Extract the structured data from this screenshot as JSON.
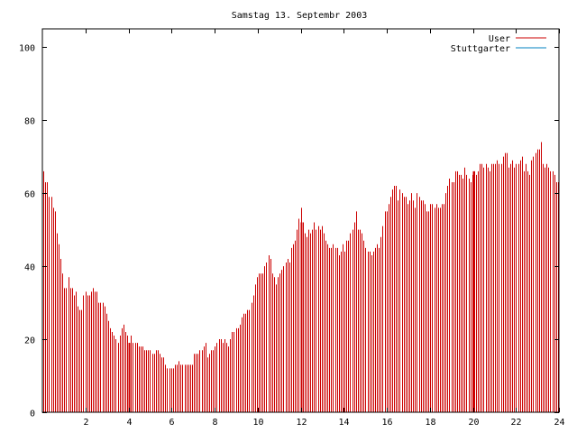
{
  "chart_data": {
    "type": "bar",
    "title": "Samstag 13. Septembr 2003",
    "xlabel": "",
    "ylabel": "",
    "xlim": [
      0,
      24
    ],
    "ylim": [
      0,
      105
    ],
    "xticks": [
      2,
      4,
      6,
      8,
      10,
      12,
      14,
      16,
      18,
      20,
      22,
      24
    ],
    "yticks": [
      0,
      20,
      40,
      60,
      80,
      100
    ],
    "grid": false,
    "legend_position": "top-right",
    "series": [
      {
        "name": "User",
        "color": "#cc0000",
        "values": [
          66,
          63,
          63,
          59,
          59,
          56,
          55,
          49,
          46,
          42,
          38,
          34,
          34,
          37,
          34,
          34,
          32,
          33,
          29,
          28,
          28,
          32,
          33,
          32,
          32,
          33,
          34,
          33,
          33,
          30,
          30,
          30,
          29,
          27,
          25,
          23,
          22,
          21,
          20,
          19,
          21,
          23,
          24,
          22,
          21,
          19,
          21,
          19,
          19,
          19,
          18,
          18,
          18,
          17,
          17,
          17,
          17,
          16,
          16,
          17,
          17,
          16,
          15,
          15,
          13,
          12,
          12,
          12,
          12,
          13,
          13,
          14,
          13,
          13,
          13,
          13,
          13,
          13,
          13,
          16,
          16,
          16,
          17,
          17,
          18,
          19,
          15,
          16,
          17,
          17,
          18,
          19,
          20,
          20,
          19,
          20,
          19,
          18,
          20,
          22,
          22,
          23,
          23,
          24,
          26,
          27,
          27,
          28,
          28,
          30,
          32,
          35,
          37,
          38,
          38,
          38,
          40,
          41,
          43,
          42,
          38,
          37,
          35,
          37,
          38,
          39,
          40,
          41,
          42,
          41,
          45,
          46,
          47,
          50,
          53,
          56,
          52,
          49,
          48,
          50,
          49,
          50,
          52,
          50,
          51,
          50,
          51,
          49,
          47,
          46,
          45,
          45,
          46,
          45,
          45,
          43,
          44,
          46,
          44,
          47,
          47,
          49,
          50,
          52,
          55,
          50,
          50,
          49,
          47,
          45,
          44,
          44,
          43,
          44,
          45,
          46,
          45,
          48,
          51,
          55,
          55,
          57,
          59,
          61,
          62,
          62,
          58,
          61,
          60,
          59,
          59,
          57,
          58,
          60,
          58,
          56,
          60,
          59,
          58,
          58,
          57,
          55,
          55,
          57,
          57,
          56,
          57,
          56,
          56,
          57,
          57,
          60,
          62,
          64,
          63,
          63,
          66,
          66,
          65,
          65,
          64,
          67,
          65,
          64,
          63,
          65,
          66,
          65,
          66,
          68,
          68,
          67,
          68,
          67,
          66,
          68,
          68,
          68,
          69,
          68,
          68,
          70,
          71,
          71,
          67,
          68,
          69,
          67,
          68,
          68,
          69,
          70,
          66,
          68,
          66,
          65,
          69,
          70,
          71,
          72,
          72,
          74,
          68,
          67,
          68,
          67,
          66,
          66,
          65,
          63,
          63
        ],
        "spikes_x": [
          4,
          12,
          20
        ]
      },
      {
        "name": "Stuttgarter",
        "color": "#0080c0",
        "values": []
      }
    ]
  }
}
